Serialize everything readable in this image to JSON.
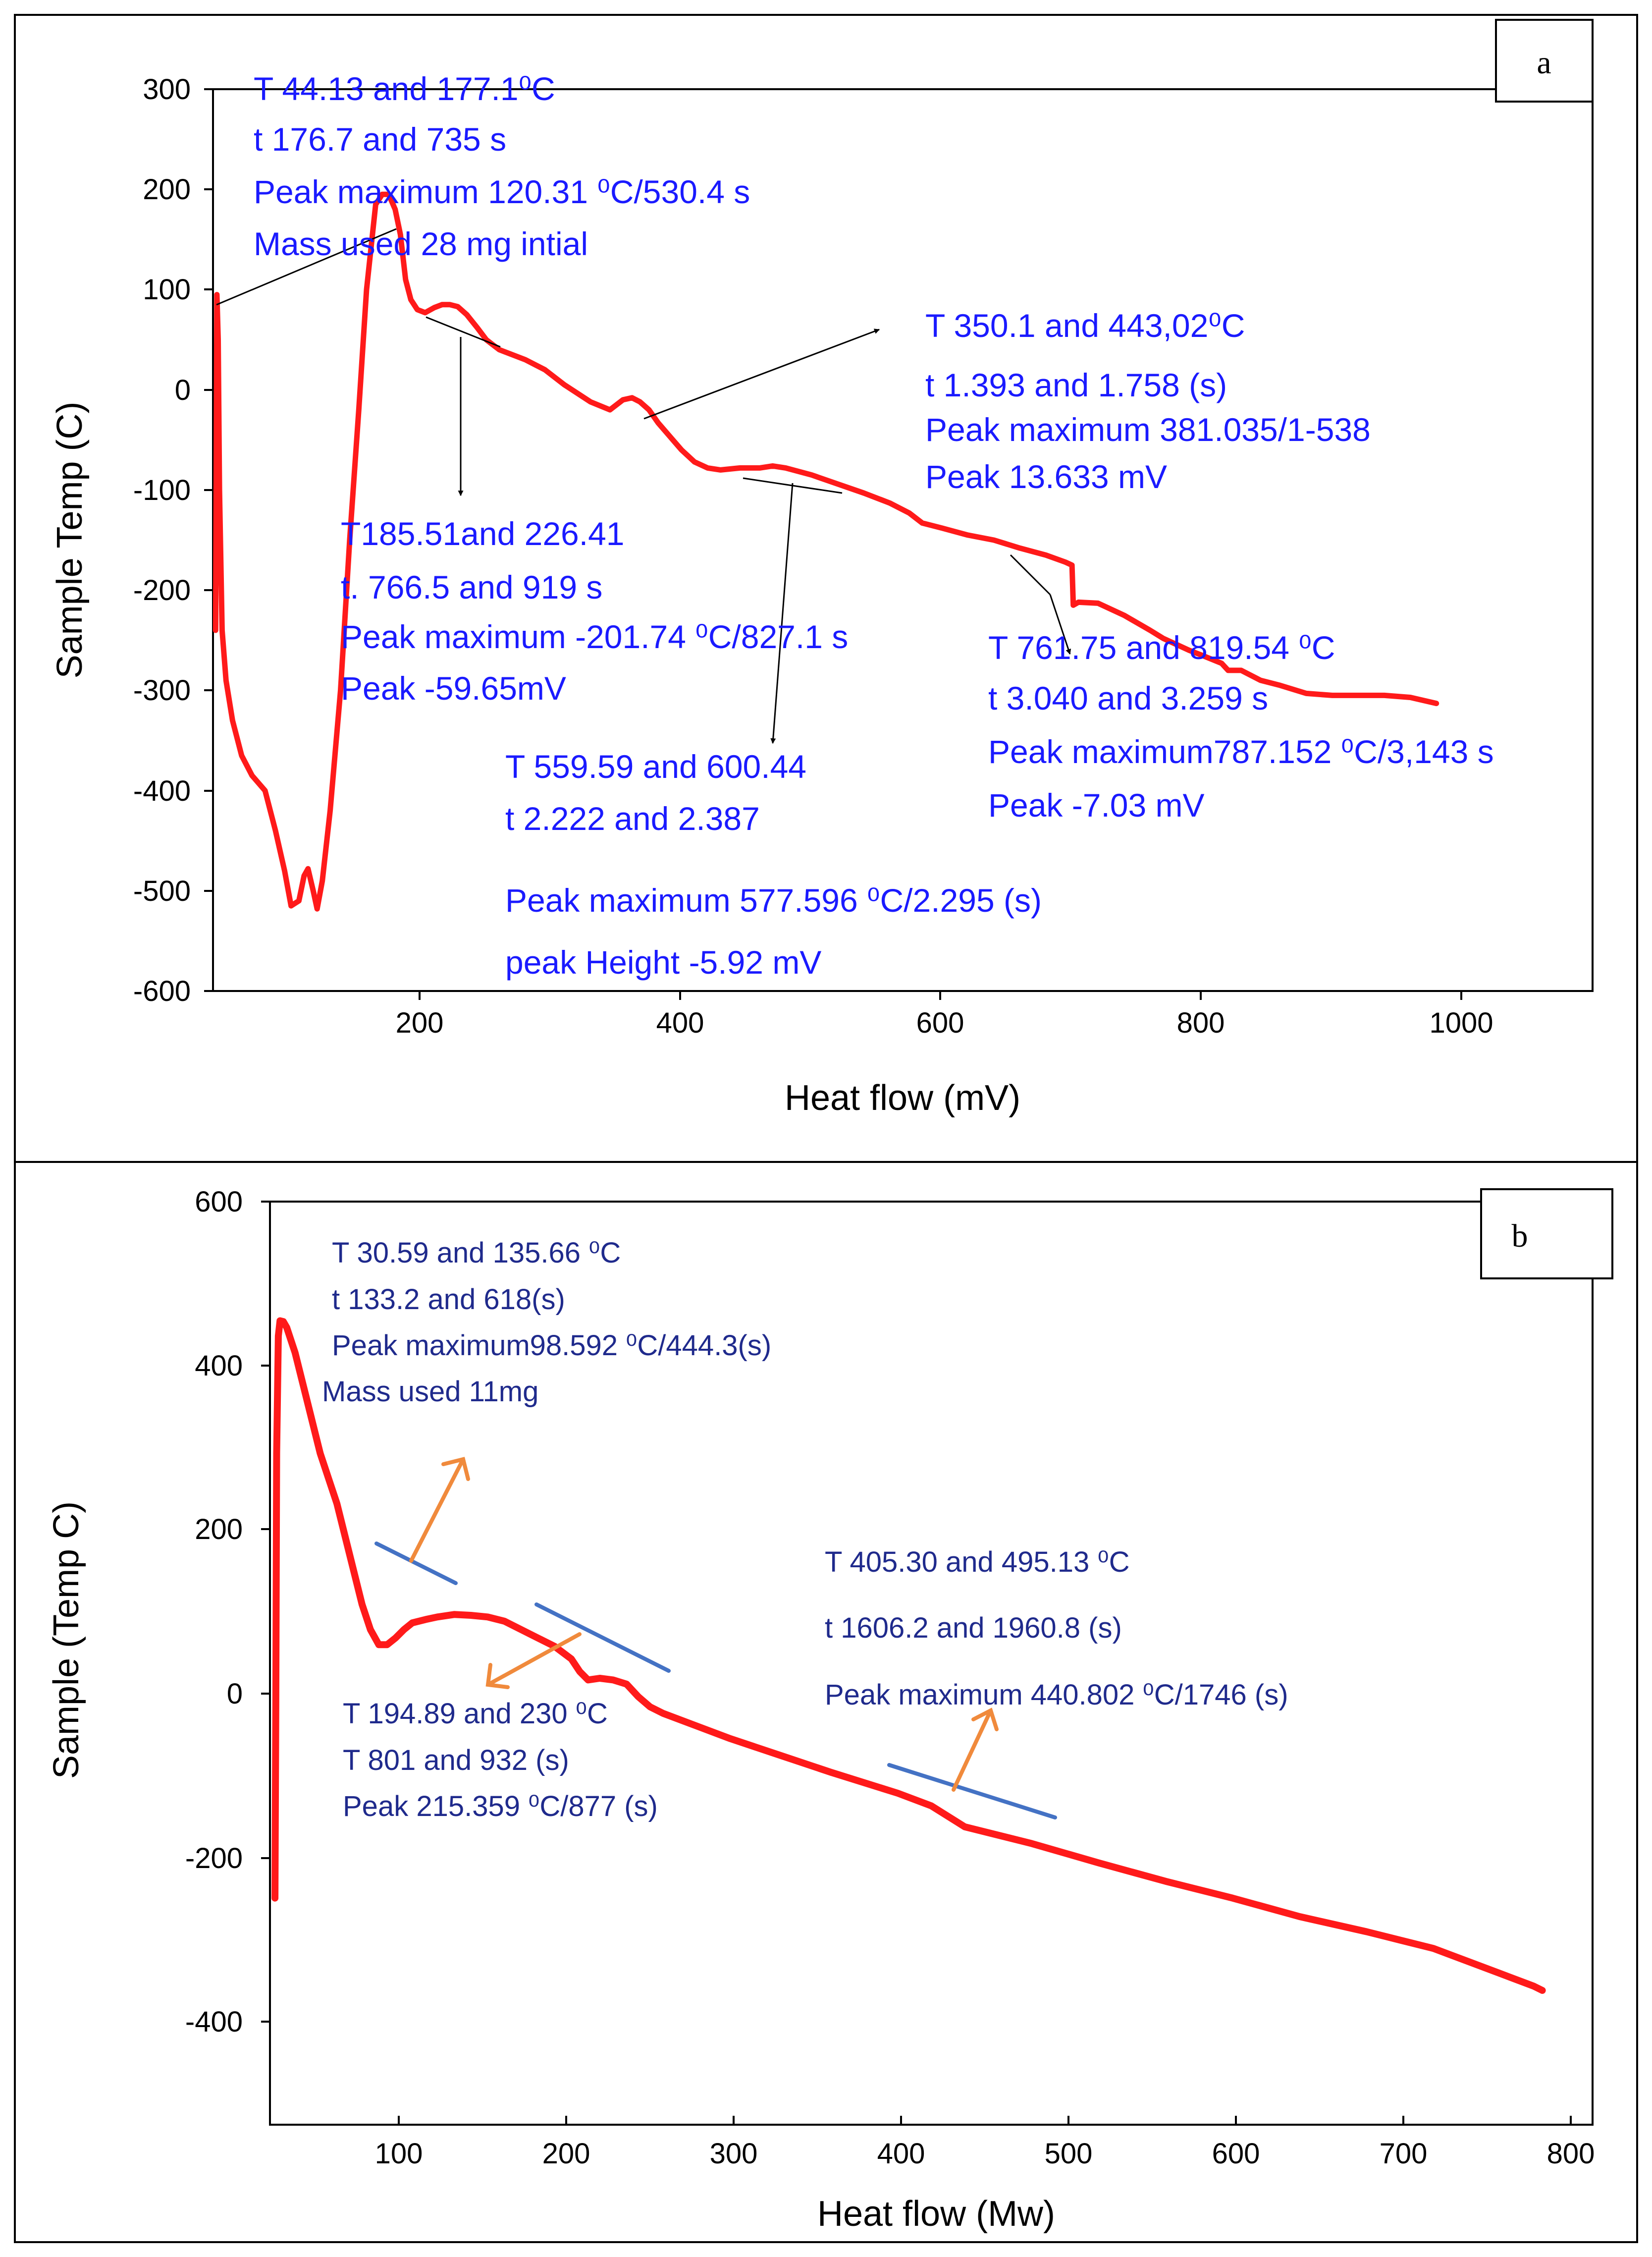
{
  "chart_data": [
    {
      "type": "line",
      "panel_label": "a",
      "xlabel": "Heat flow (mV)",
      "ylabel": "Sample Temp (C)",
      "xlim": [
        40,
        1100
      ],
      "ylim": [
        -600,
        300
      ],
      "xticks": [
        200,
        400,
        600,
        800,
        1000
      ],
      "yticks": [
        300,
        200,
        100,
        0,
        -100,
        -200,
        -300,
        -400,
        -500,
        -600
      ],
      "xtick_labels": [
        "200",
        "400",
        "600",
        "800",
        "1000"
      ],
      "ytick_labels": [
        "300",
        "200",
        "100",
        "0",
        "-100",
        "-200",
        "-300",
        "-400",
        "-500",
        "-600"
      ],
      "series": [
        {
          "name": "sample temp",
          "color": "#ff1a1a",
          "x": [
            42,
            43,
            44,
            45,
            47,
            50,
            55,
            62,
            70,
            80,
            88,
            95,
            100,
            106,
            110,
            113,
            117,
            120,
            124,
            130,
            138,
            145,
            152,
            158,
            165,
            170,
            175,
            180,
            184,
            188,
            192,
            197,
            203,
            210,
            216,
            222,
            228,
            235,
            243,
            250,
            260,
            270,
            280,
            295,
            310,
            330,
            345,
            355,
            362,
            368,
            375,
            382,
            390,
            400,
            410,
            420,
            430,
            445,
            460,
            470,
            480,
            500,
            520,
            540,
            560,
            575,
            585,
            600,
            620,
            640,
            660,
            680,
            695,
            700,
            701,
            705,
            720,
            740,
            760,
            770,
            790,
            800,
            815,
            820,
            830,
            845,
            860,
            880,
            900,
            920,
            940,
            960,
            980
          ],
          "y": [
            -240,
            95,
            50,
            -100,
            -240,
            -290,
            -330,
            -365,
            -385,
            -400,
            -440,
            -480,
            -515,
            -510,
            -485,
            -478,
            -500,
            -518,
            -490,
            -420,
            -300,
            -150,
            -20,
            100,
            185,
            195,
            195,
            180,
            155,
            110,
            90,
            80,
            77,
            82,
            85,
            85,
            83,
            75,
            62,
            50,
            40,
            35,
            30,
            20,
            5,
            -12,
            -20,
            -10,
            -8,
            -12,
            -20,
            -33,
            -45,
            -60,
            -72,
            -78,
            -80,
            -78,
            -78,
            -76,
            -78,
            -85,
            -94,
            -103,
            -113,
            -123,
            -133,
            -138,
            -145,
            -150,
            -158,
            -165,
            -172,
            -175,
            -215,
            -212,
            -213,
            -225,
            -240,
            -248,
            -260,
            -265,
            -273,
            -280,
            -280,
            -290,
            -295,
            -303,
            -305,
            -305,
            -305,
            -307,
            -313
          ]
        }
      ],
      "annotations": [
        {
          "lines": [
            "T 44.13 and 177.1⁰C",
            "t 176.7 and 735 s",
            "Peak maximum 120.31 ⁰C/530.4 s",
            "Mass used 28 mg intial"
          ]
        },
        {
          "lines": [
            "T 350.1 and 443,02⁰C",
            "t 1.393 and 1.758 (s)",
            "Peak maximum 381.035/1-538",
            "Peak 13.633 mV"
          ]
        },
        {
          "lines": [
            "T185.51and 226.41",
            "t. 766.5 and 919 s",
            "Peak maximum -201.74 ⁰C/827.1 s",
            "Peak -59.65mV"
          ]
        },
        {
          "lines": [
            "T 559.59 and 600.44",
            "t 2.222 and 2.387",
            "Peak maximum 577.596 ⁰C/2.295 (s)",
            "peak Height -5.92 mV"
          ]
        },
        {
          "lines": [
            "T 761.75 and 819.54 ⁰C",
            "t 3.040 and 3.259 s",
            "Peak maximum787.152 ⁰C/3,143 s",
            "Peak -7.03 mV"
          ]
        }
      ]
    },
    {
      "type": "line",
      "panel_label": "b",
      "xlabel": "Heat flow (Mw)",
      "ylabel": "Sample (Temp C)",
      "xlim": [
        25,
        815
      ],
      "ylim": [
        -500,
        600
      ],
      "xticks": [
        100,
        200,
        300,
        400,
        500,
        600,
        700,
        800
      ],
      "yticks": [
        600,
        400,
        200,
        0,
        -200,
        -400
      ],
      "xtick_labels": [
        "100",
        "200",
        "300",
        "400",
        "500",
        "600",
        "700",
        "800"
      ],
      "ytick_labels": [
        "600",
        "400",
        "200",
        "0",
        "-200",
        "-400"
      ],
      "series": [
        {
          "name": "sample temp",
          "color": "#ff1a1a",
          "x": [
            28,
            28.5,
            29,
            30,
            31,
            33,
            35,
            40,
            45,
            50,
            55,
            60,
            65,
            70,
            75,
            80,
            85,
            90,
            95,
            100,
            105,
            110,
            118,
            125,
            135,
            145,
            155,
            165,
            175,
            185,
            195,
            205,
            210,
            215,
            222,
            230,
            238,
            245,
            252,
            260,
            280,
            300,
            330,
            360,
            400,
            420,
            440,
            480,
            520,
            560,
            600,
            640,
            680,
            700,
            720,
            740,
            760,
            780,
            785
          ],
          "y": [
            -230,
            0,
            300,
            440,
            458,
            457,
            450,
            420,
            380,
            340,
            300,
            270,
            240,
            200,
            160,
            120,
            90,
            72,
            72,
            80,
            90,
            98,
            102,
            105,
            108,
            107,
            105,
            100,
            90,
            80,
            70,
            55,
            40,
            30,
            32,
            30,
            25,
            10,
            -2,
            -10,
            -25,
            -40,
            -60,
            -80,
            -105,
            -120,
            -145,
            -165,
            -188,
            -210,
            -230,
            -252,
            -270,
            -280,
            -290,
            -305,
            -320,
            -335,
            -340
          ]
        }
      ],
      "annotations": [
        {
          "lines": [
            "T 30.59 and 135.66 ⁰C",
            "t 133.2 and 618(s)",
            "Peak maximum98.592 ⁰C/444.3(s)",
            "Mass used 11mg"
          ]
        },
        {
          "lines": [
            "T 194.89 and 230 ⁰C",
            "T 801 and 932 (s)",
            "Peak 215.359 ⁰C/877 (s)"
          ]
        },
        {
          "lines": [
            "T 405.30 and 495.13 ⁰C",
            "t 1606.2 and 1960.8 (s)",
            "Peak maximum 440.802 ⁰C/1746 (s)"
          ]
        }
      ]
    }
  ]
}
